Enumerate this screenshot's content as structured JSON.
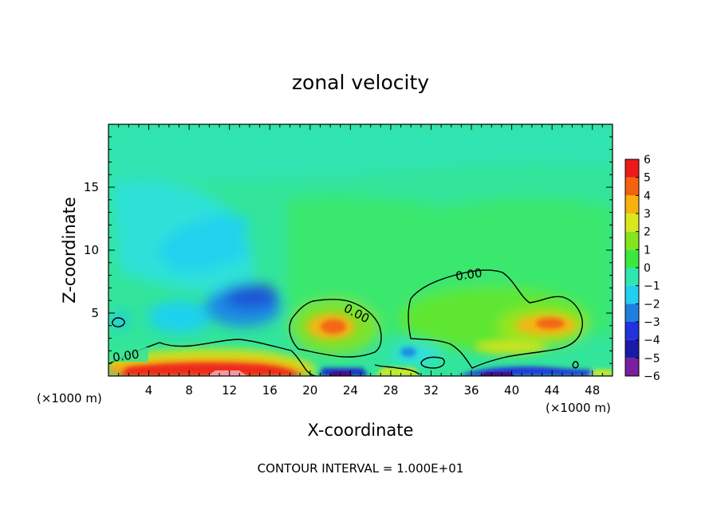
{
  "chart_data": {
    "type": "heatmap",
    "title": "zonal velocity",
    "xlabel": "X-coordinate",
    "ylabel": "Z-coordinate",
    "x_unit_label": "(×1000 m)",
    "x_unit_label_right": "(×1000 m)",
    "xlim": [
      0,
      50
    ],
    "ylim": [
      0,
      20
    ],
    "x_ticks": [
      4,
      8,
      12,
      16,
      20,
      24,
      28,
      32,
      36,
      40,
      44,
      48
    ],
    "y_ticks": [
      5,
      10,
      15
    ],
    "colorbar": {
      "levels": [
        -6,
        -5,
        -4,
        -3,
        -2,
        -1,
        0,
        1,
        2,
        3,
        4,
        5,
        6
      ],
      "colors": [
        "#7a1fa0",
        "#1a1aa8",
        "#2233dd",
        "#1f7fe0",
        "#22cfee",
        "#2de6b0",
        "#3ce83c",
        "#86e41e",
        "#d8e81c",
        "#f7b20f",
        "#f5620f",
        "#ee1a1a",
        "#f39aa0"
      ]
    },
    "contour_level": 0.0,
    "contour_labels": [
      "0.00",
      "0.00",
      "0.00"
    ],
    "footer": "CONTOUR INTERVAL = 1.000E+01"
  }
}
